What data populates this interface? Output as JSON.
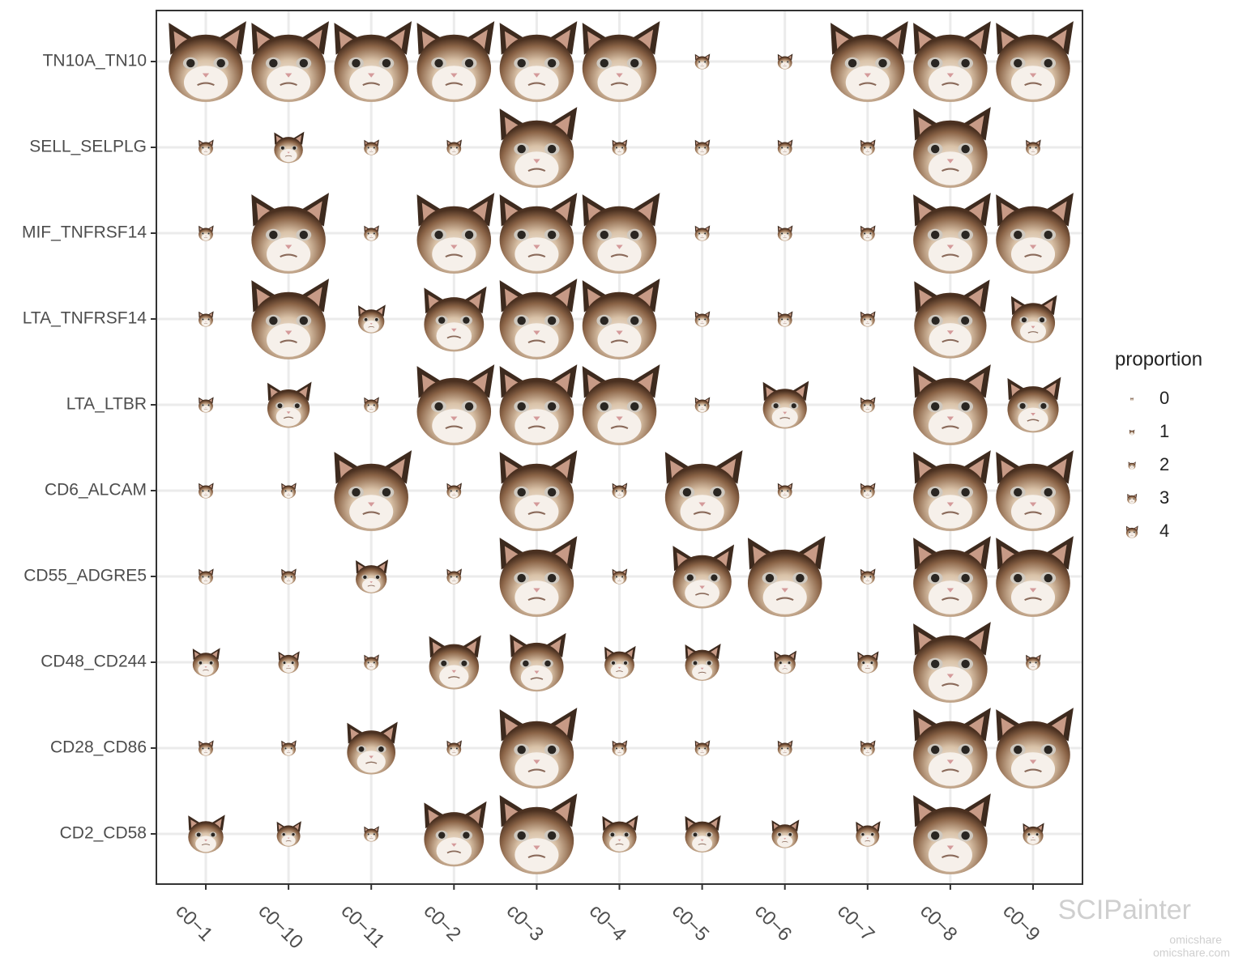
{
  "chart_data": {
    "type": "icon-dot",
    "categories": [
      "c0−1",
      "c0−10",
      "c0−11",
      "c0−2",
      "c0−3",
      "c0−4",
      "c0−5",
      "c0−6",
      "c0−7",
      "c0−8",
      "c0−9"
    ],
    "rows": [
      "TN10A_TN10",
      "SELL_SELPLG",
      "MIF_TNFRSF14",
      "LTA_TNFRSF14",
      "LTA_LTBR",
      "CD6_ALCAM",
      "CD55_ADGRE5",
      "CD48_CD244",
      "CD28_CD86",
      "CD2_CD58"
    ],
    "values": [
      [
        4,
        4,
        4,
        4,
        4,
        4,
        0.15,
        0.15,
        4,
        4,
        4
      ],
      [
        0.15,
        0.6,
        0.15,
        0.15,
        4,
        0.15,
        0.15,
        0.15,
        0.15,
        4,
        0.15
      ],
      [
        0.15,
        4,
        0.15,
        4,
        4,
        4,
        0.15,
        0.15,
        0.15,
        4,
        4
      ],
      [
        0.15,
        4,
        0.5,
        2.6,
        4,
        4,
        0.15,
        0.15,
        0.15,
        3.8,
        1.4
      ],
      [
        0.15,
        1.3,
        0.15,
        4,
        4,
        4,
        0.15,
        1.4,
        0.15,
        4,
        1.9
      ],
      [
        0.15,
        0.15,
        4,
        0.15,
        4,
        0.15,
        4,
        0.15,
        0.15,
        4,
        4
      ],
      [
        0.15,
        0.15,
        0.7,
        0.15,
        4,
        0.15,
        2.5,
        4,
        0.15,
        4,
        4
      ],
      [
        0.5,
        0.3,
        0.15,
        1.8,
        2.1,
        0.65,
        0.85,
        0.33,
        0.3,
        4,
        0.15
      ],
      [
        0.15,
        0.15,
        1.7,
        0.15,
        4,
        0.15,
        0.15,
        0.15,
        0.15,
        4,
        4
      ],
      [
        0.9,
        0.4,
        0.15,
        2.6,
        4,
        0.85,
        0.85,
        0.5,
        0.4,
        4,
        0.3
      ]
    ],
    "legend": {
      "title": "proportion",
      "values": [
        0,
        1,
        2,
        3,
        4
      ]
    },
    "grid": true,
    "watermark": [
      "SCIPainter",
      "omicshare",
      "omicshare.com"
    ]
  }
}
